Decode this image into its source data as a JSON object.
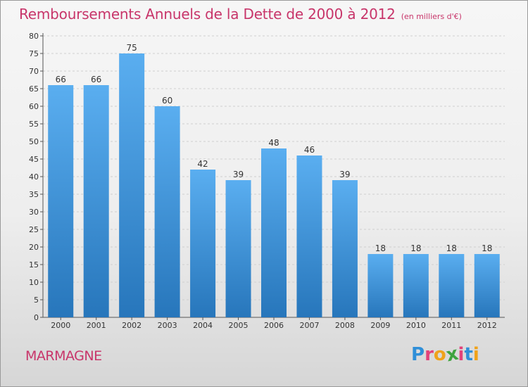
{
  "title": "Remboursements Annuels de la Dette de 2000 à 2012",
  "unit": "(en milliers d'€)",
  "commune": "MARMAGNE",
  "logo": {
    "text": "Proxiti",
    "letters": [
      {
        "ch": "P",
        "color": "#2f8fd8"
      },
      {
        "ch": "r",
        "color": "#e3427a"
      },
      {
        "ch": "o",
        "color": "#f0a21a"
      },
      {
        "ch": "x",
        "color": "#3ea33e"
      },
      {
        "ch": "i",
        "color": "#e3427a"
      },
      {
        "ch": "t",
        "color": "#2f8fd8"
      },
      {
        "ch": "i",
        "color": "#f0a21a"
      }
    ]
  },
  "colors": {
    "title": "#c8356a",
    "bar_top": "#5aaef0",
    "bar_bottom": "#2776bb",
    "grid": "#cfcfcf",
    "axis": "#555555"
  },
  "chart_data": {
    "type": "bar",
    "title": "Remboursements Annuels de la Dette de 2000 à 2012",
    "xlabel": "",
    "ylabel": "",
    "categories": [
      "2000",
      "2001",
      "2002",
      "2003",
      "2004",
      "2005",
      "2006",
      "2007",
      "2008",
      "2009",
      "2010",
      "2011",
      "2012"
    ],
    "values": [
      66,
      66,
      75,
      60,
      42,
      39,
      48,
      46,
      39,
      18,
      18,
      18,
      18
    ],
    "ylim": [
      0,
      80
    ],
    "yticks": [
      0,
      5,
      10,
      15,
      20,
      25,
      30,
      35,
      40,
      45,
      50,
      55,
      60,
      65,
      70,
      75,
      80
    ],
    "grid": true,
    "data_labels": true
  }
}
